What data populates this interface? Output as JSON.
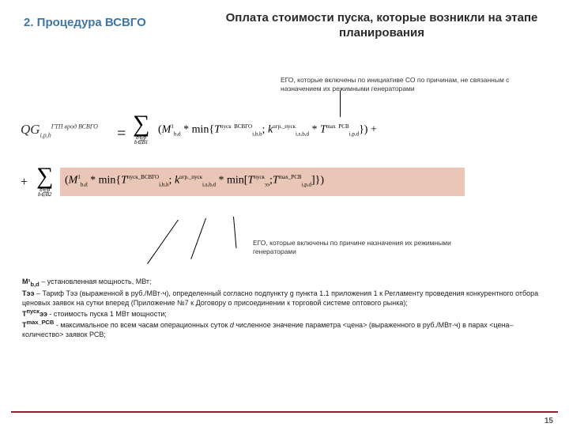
{
  "section_label": "2. Процедура ВСВГО",
  "title": "Оплата стоимости пуска, которые возникли на этапе планирования",
  "callout1": "ЕГО, которые включены по инициативе СО по причинам, не связанным с назначением их режимными генераторами",
  "callout2": "ЕГО, которые включены по причине назначения их режимными генераторами",
  "page_number": "15",
  "formula": {
    "lhs_var": "QG",
    "lhs_sup": "ГТП врод ВСВГО",
    "lhs_sub": "i,p,h",
    "sigma1_sub1": "b∈p",
    "sigma1_sub2": "b∈B1",
    "sigma2_sub1": "b∈p",
    "sigma2_sub2": "b∈B2",
    "term1_text": "(M¹_{b,d} * min{T^{пуск _ ВСВГО}_{i,b,h}; k^{огр._пуск}_{i,s,b,d} * T^{max_РСВ}_{i,p,d}})",
    "term2_text": "(M¹_{b,d} * min{T^{пуск_ВСВГО}_{i,b,h}; k^{огр._пуск}_{i,s,b,d} * min[T^{пуск}_{ээ}; T^{max_РСВ}_{i,p,d}]})",
    "highlight_color": "#e9c6b5"
  },
  "defs": {
    "l1": "M¹_{b,d} – установленная мощность, МВт;",
    "l2": "Тээ – Тариф Тээ (выраженной в руб./МВт·ч), определенный согласно подпункту g пункта 1.1 приложения 1 к Регламенту проведения конкурентного отбора ценовых заявок на сутки вперед (Приложение №7 к Договору о присоединении к торговой системе оптового рынка);",
    "l3": "T^{пуск}ээ  - стоимость пуска 1 МВт мощности;",
    "l4": "T^{max_РСВ} - максимальное по всем часам операционных суток d численное значение параметра <цена> (выраженного в руб./МВт·ч) в парах <цена–количество> заявок РСВ;"
  },
  "colors": {
    "accent_blue": "#3e76a7",
    "rule_red": "#8a1f2f",
    "text_dark": "#2a2a2a"
  }
}
